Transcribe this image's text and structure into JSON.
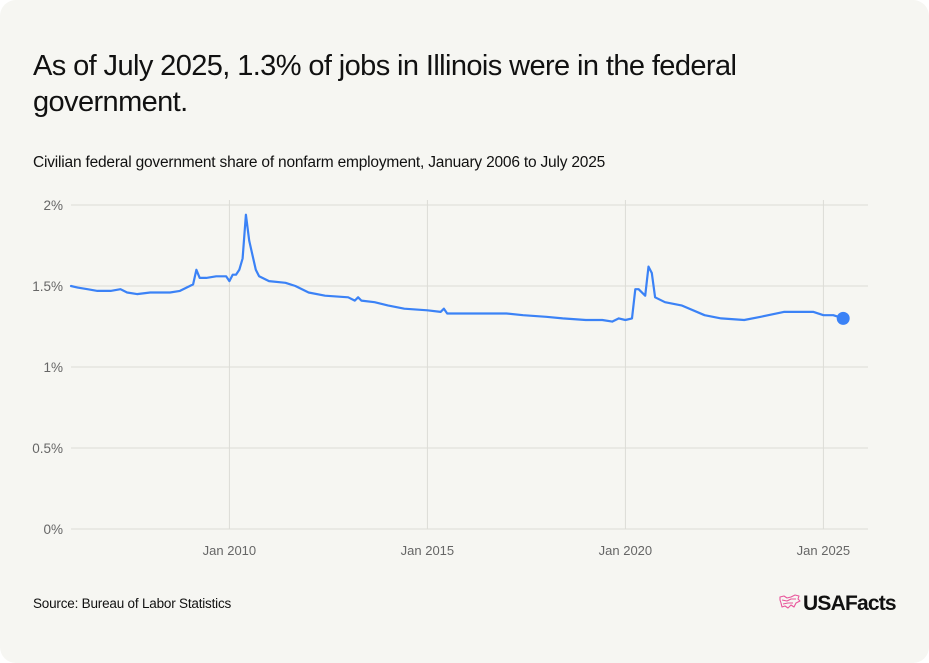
{
  "header": {
    "title": "As of July 2025, 1.3% of jobs in Illinois were in the federal government.",
    "subtitle": "Civilian federal government share of nonfarm employment, January 2006 to July 2025"
  },
  "footer": {
    "source": "Source: Bureau of Labor Statistics",
    "logo_text": "USAFacts",
    "logo_icon": "usa-map-icon"
  },
  "colors": {
    "line": "#3b82f6",
    "grid": "#dcdcd6",
    "logo_icon": "#e8559b",
    "background": "#f6f6f2"
  },
  "chart_data": {
    "type": "line",
    "title": "Civilian federal government share of nonfarm employment, January 2006 to July 2025",
    "xlabel": "",
    "ylabel": "",
    "ylim": [
      0,
      2
    ],
    "xlim": [
      "2006-01",
      "2025-07"
    ],
    "grid": true,
    "y_ticks": [
      {
        "value": 2,
        "label": "2%"
      },
      {
        "value": 1.5,
        "label": "1.5%"
      },
      {
        "value": 1,
        "label": "1%"
      },
      {
        "value": 0.5,
        "label": "0.5%"
      },
      {
        "value": 0,
        "label": "0%"
      }
    ],
    "x_ticks": [
      {
        "value": "2010-01",
        "label": "Jan 2010"
      },
      {
        "value": "2015-01",
        "label": "Jan 2015"
      },
      {
        "value": "2020-01",
        "label": "Jan 2020"
      },
      {
        "value": "2025-01",
        "label": "Jan 2025"
      }
    ],
    "series": [
      {
        "name": "Illinois federal share",
        "unit": "%",
        "x": [
          "2006-01",
          "2006-03",
          "2006-06",
          "2006-09",
          "2007-01",
          "2007-04",
          "2007-06",
          "2007-09",
          "2008-01",
          "2008-04",
          "2008-07",
          "2008-10",
          "2008-12",
          "2009-02",
          "2009-03",
          "2009-04",
          "2009-06",
          "2009-09",
          "2009-12",
          "2010-01",
          "2010-02",
          "2010-03",
          "2010-04",
          "2010-05",
          "2010-06",
          "2010-07",
          "2010-08",
          "2010-09",
          "2010-10",
          "2011-01",
          "2011-06",
          "2011-09",
          "2012-01",
          "2012-06",
          "2013-01",
          "2013-03",
          "2013-04",
          "2013-05",
          "2013-09",
          "2014-01",
          "2014-06",
          "2015-01",
          "2015-05",
          "2015-06",
          "2015-07",
          "2016-01",
          "2016-06",
          "2017-01",
          "2017-06",
          "2018-01",
          "2018-06",
          "2019-01",
          "2019-06",
          "2019-09",
          "2019-11",
          "2020-01",
          "2020-03",
          "2020-04",
          "2020-05",
          "2020-07",
          "2020-08",
          "2020-09",
          "2020-10",
          "2021-01",
          "2021-06",
          "2022-01",
          "2022-06",
          "2023-01",
          "2023-06",
          "2024-01",
          "2024-06",
          "2024-10",
          "2025-01",
          "2025-04",
          "2025-07"
        ],
        "values": [
          1.5,
          1.49,
          1.48,
          1.47,
          1.47,
          1.48,
          1.46,
          1.45,
          1.46,
          1.46,
          1.46,
          1.47,
          1.49,
          1.51,
          1.6,
          1.55,
          1.55,
          1.56,
          1.56,
          1.53,
          1.57,
          1.57,
          1.6,
          1.67,
          1.94,
          1.78,
          1.69,
          1.6,
          1.56,
          1.53,
          1.52,
          1.5,
          1.46,
          1.44,
          1.43,
          1.41,
          1.43,
          1.41,
          1.4,
          1.38,
          1.36,
          1.35,
          1.34,
          1.36,
          1.33,
          1.33,
          1.33,
          1.33,
          1.32,
          1.31,
          1.3,
          1.29,
          1.29,
          1.28,
          1.3,
          1.29,
          1.3,
          1.48,
          1.48,
          1.44,
          1.62,
          1.58,
          1.43,
          1.4,
          1.38,
          1.32,
          1.3,
          1.29,
          1.31,
          1.34,
          1.34,
          1.34,
          1.32,
          1.32,
          1.3
        ]
      }
    ],
    "endpoint": {
      "x": "2025-07",
      "value": 1.3
    }
  }
}
